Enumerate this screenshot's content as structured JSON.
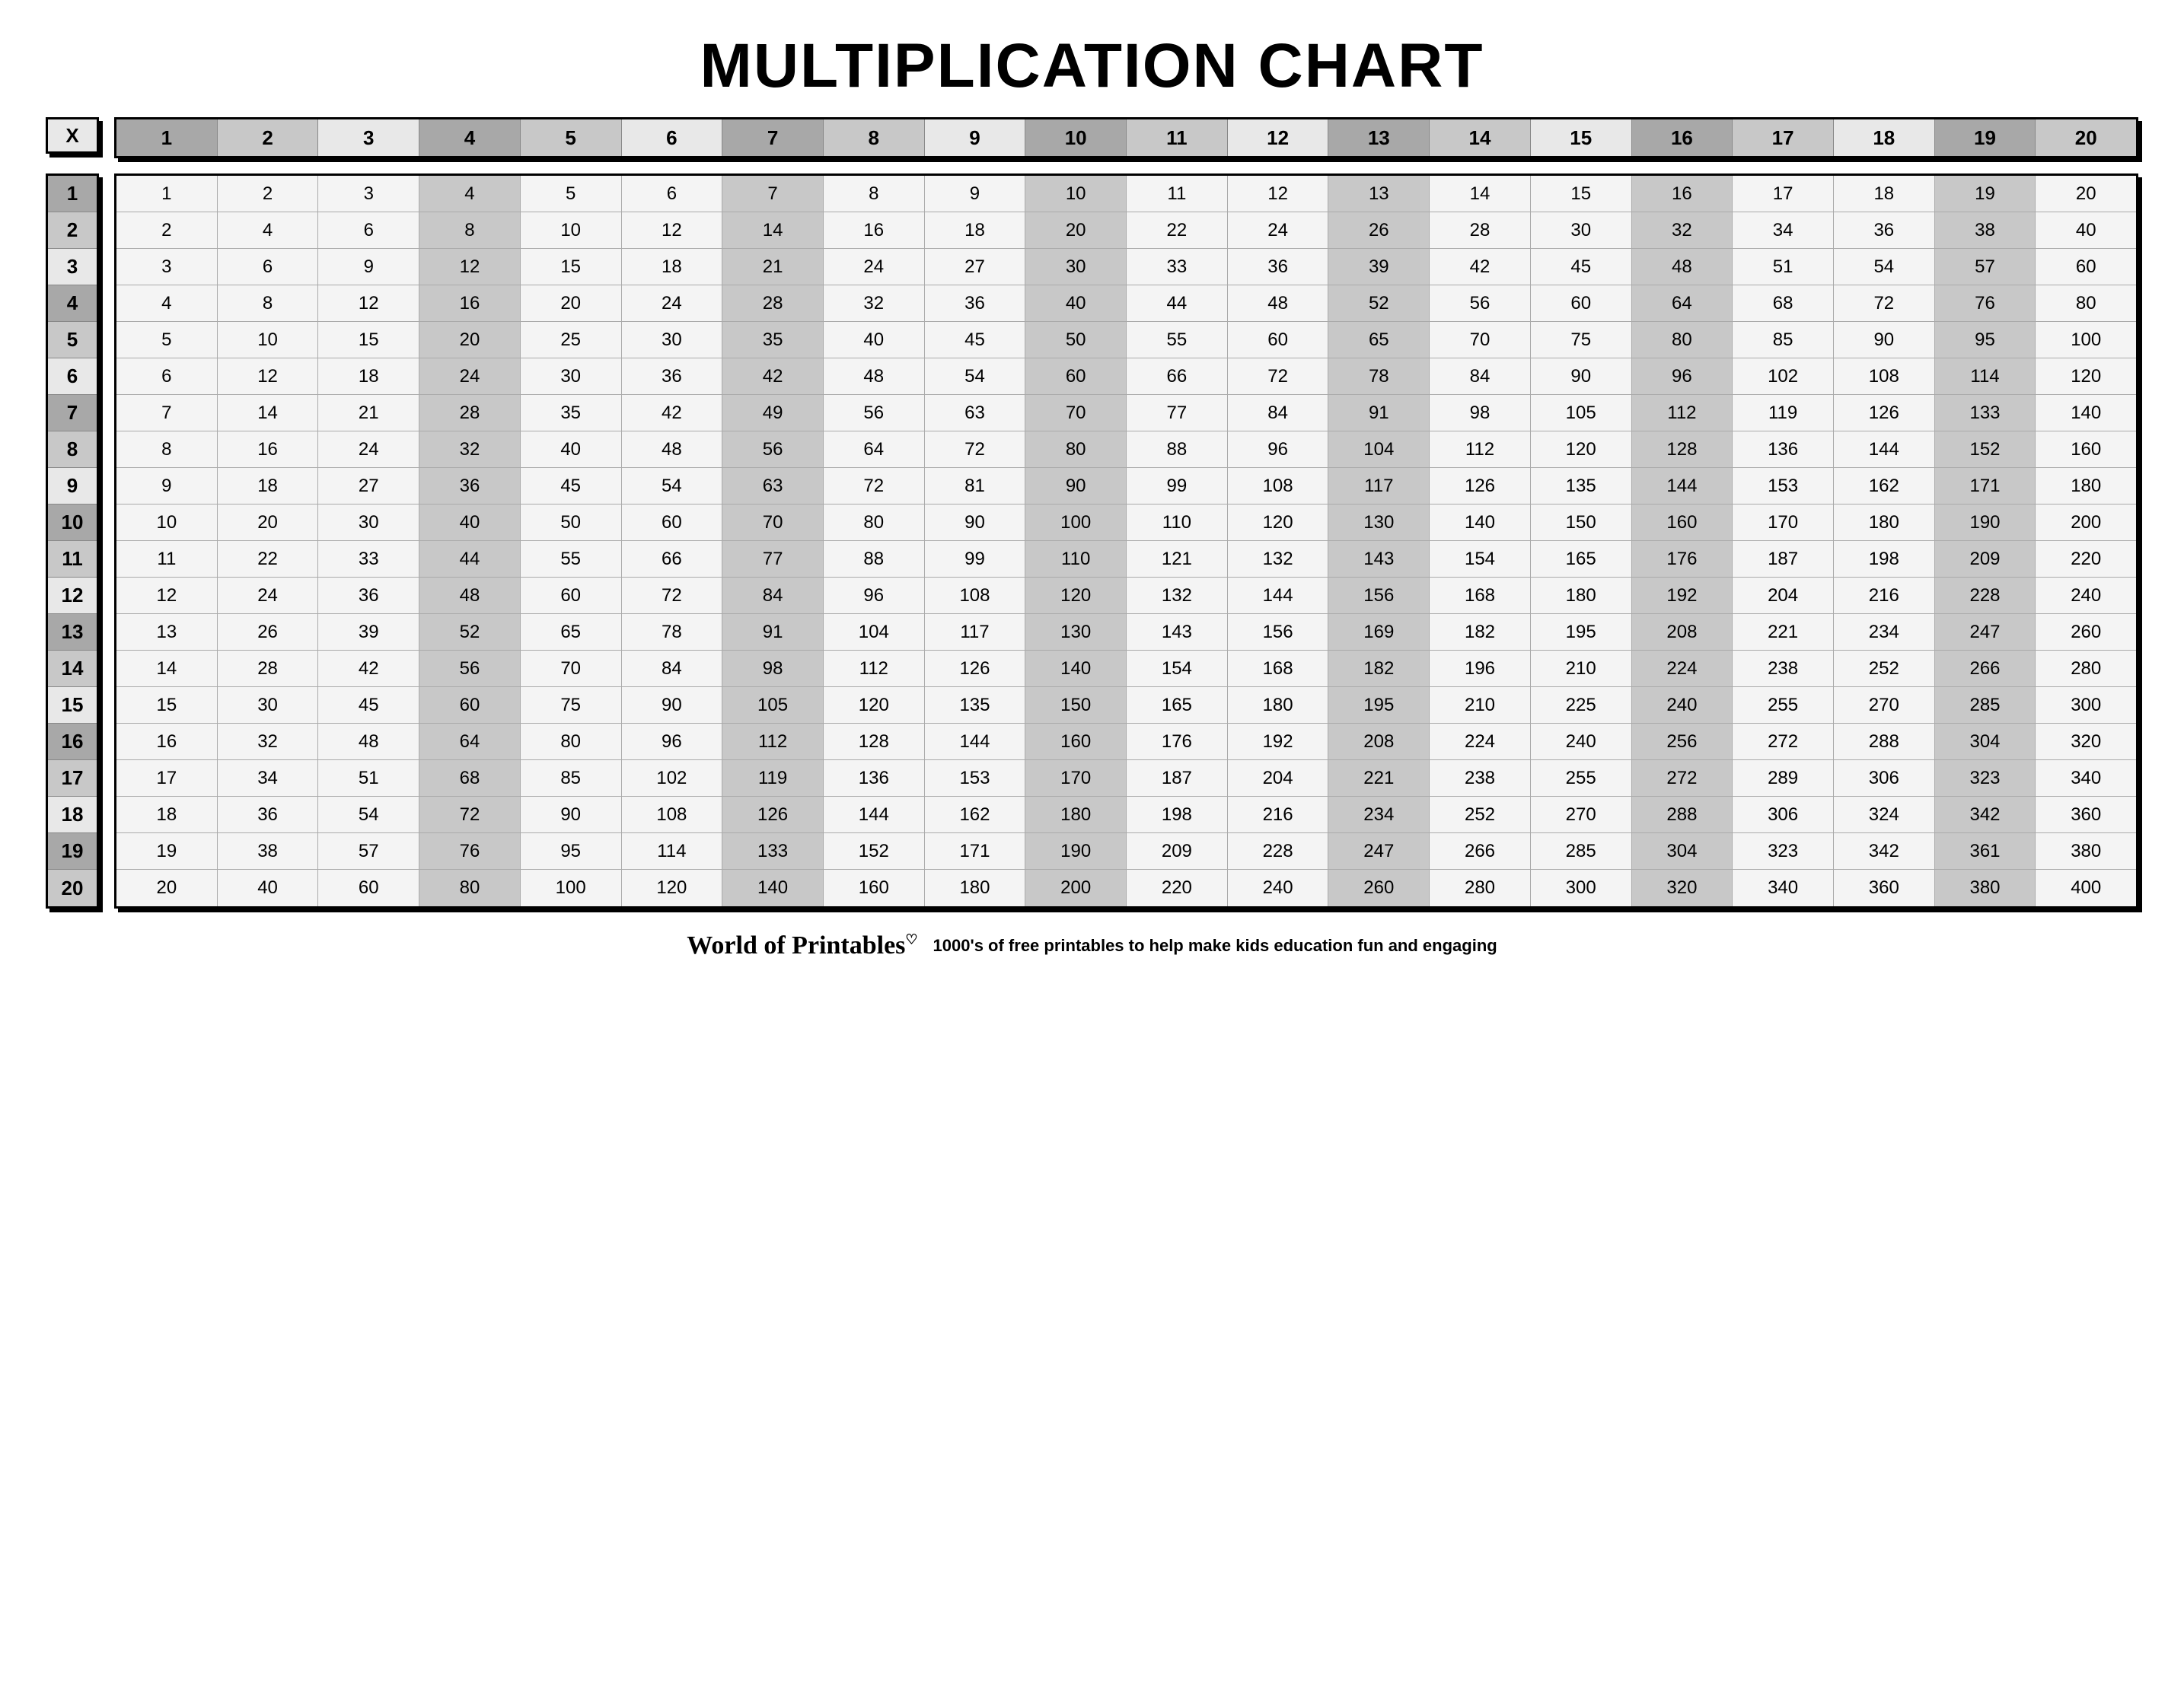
{
  "title": "MULTIPLICATION CHART",
  "corner_label": "X",
  "size": 20,
  "shades": {
    "dark": "#a8a8a8",
    "mid": "#c8c8c8",
    "light": "#e8e8e8",
    "vlight": "#f4f4f4"
  },
  "header_pattern": [
    "dark",
    "mid",
    "light",
    "dark",
    "mid",
    "light",
    "dark",
    "mid",
    "light",
    "dark",
    "mid",
    "light",
    "dark",
    "mid",
    "light",
    "dark",
    "mid",
    "light",
    "dark",
    "mid"
  ],
  "col_pattern": [
    "vlight",
    "vlight",
    "vlight",
    "mid",
    "vlight",
    "vlight",
    "mid",
    "vlight",
    "vlight",
    "mid",
    "vlight",
    "vlight",
    "mid",
    "vlight",
    "vlight",
    "mid",
    "vlight",
    "vlight",
    "mid",
    "vlight"
  ],
  "footer": {
    "brand": "World of Printables",
    "heart": "♡",
    "tagline": "1000's of free printables to help make kids education fun and engaging"
  }
}
